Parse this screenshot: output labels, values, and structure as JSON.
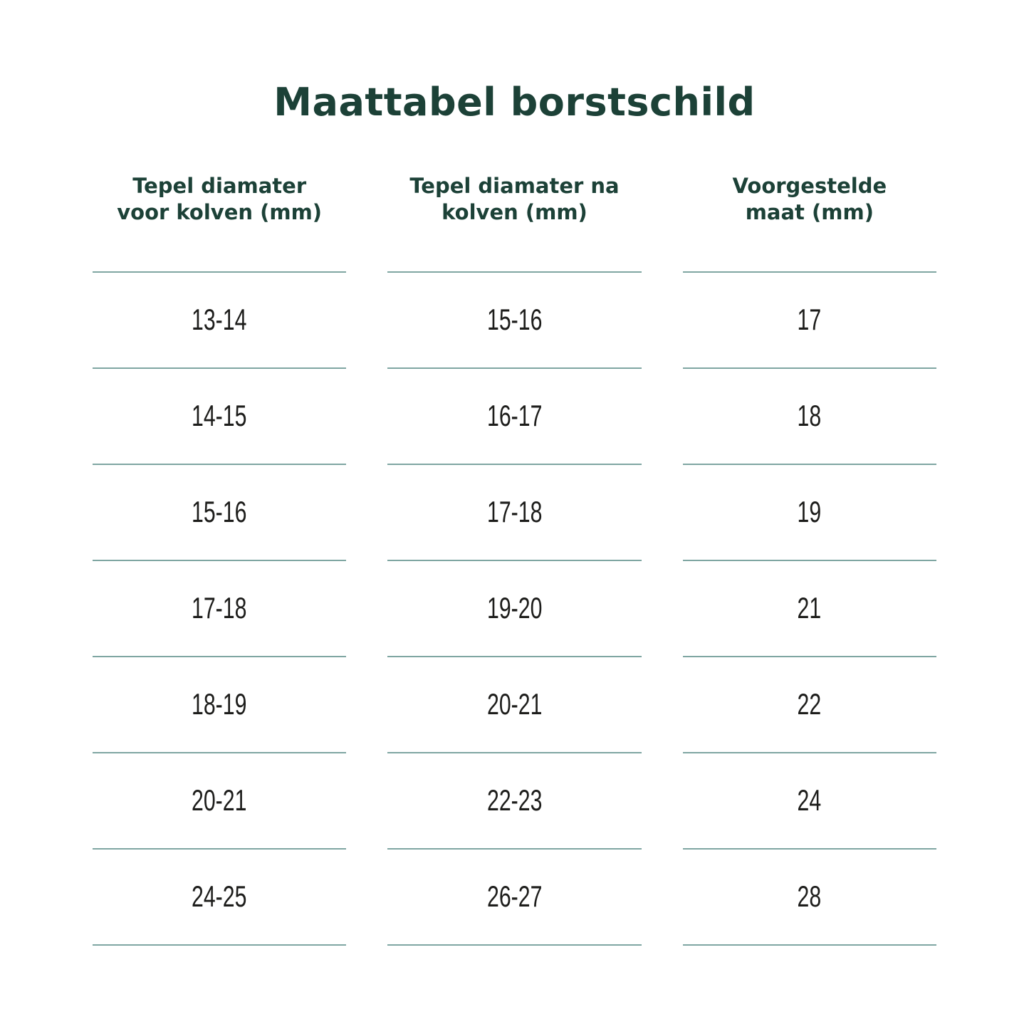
{
  "page_title": "Maattabel borstschild",
  "colors": {
    "heading_text": "#1c4137",
    "cell_text": "#1d1d1b",
    "divider_line": "#7fa6a2",
    "background": "#ffffff"
  },
  "chart_data": {
    "type": "table",
    "title": "Maattabel borstschild",
    "columns": [
      {
        "label": "Tepel diamater voor kolven (mm)",
        "label_lines": [
          "Tepel diamater",
          "voor kolven (mm)"
        ]
      },
      {
        "label": "Tepel diamater na kolven (mm)",
        "label_lines": [
          "Tepel diamater na",
          "kolven (mm)"
        ]
      },
      {
        "label": "Voorgestelde maat (mm)",
        "label_lines": [
          "Voorgestelde",
          "maat (mm)"
        ]
      }
    ],
    "rows": [
      [
        "13-14",
        "15-16",
        "17"
      ],
      [
        "14-15",
        "16-17",
        "18"
      ],
      [
        "15-16",
        "17-18",
        "19"
      ],
      [
        "17-18",
        "19-20",
        "21"
      ],
      [
        "18-19",
        "20-21",
        "22"
      ],
      [
        "20-21",
        "22-23",
        "24"
      ],
      [
        "24-25",
        "26-27",
        "28"
      ]
    ],
    "layout": {
      "grid": "per-column horizontal divider lines only",
      "header_position": "top, centered per column"
    }
  }
}
